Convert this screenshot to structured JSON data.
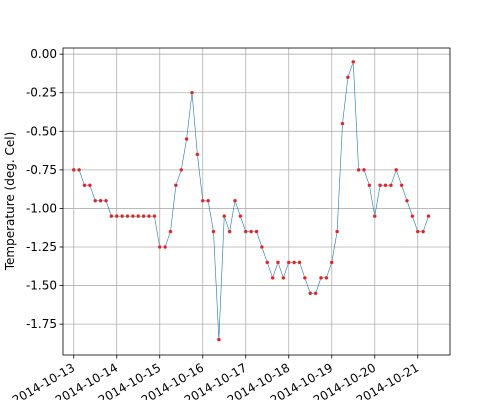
{
  "chart_data": {
    "type": "line",
    "title": "",
    "xlabel": "",
    "ylabel": "Temperature (deg. Cel)",
    "grid": true,
    "line_color": "#1f77b4",
    "marker_color": "#d62728",
    "x_tick_labels": [
      "2014-10-13",
      "2014-10-14",
      "2014-10-15",
      "2014-10-16",
      "2014-10-17",
      "2014-10-18",
      "2014-10-19",
      "2014-10-20",
      "2014-10-21"
    ],
    "y_ticks": [
      "0.00",
      "-0.25",
      "-0.50",
      "-0.75",
      "-1.00",
      "-1.25",
      "-1.50",
      "-1.75"
    ],
    "ylim": [
      -1.95,
      0.04
    ],
    "xlim": [
      "2014-10-12 18:00",
      "2014-10-21 18:00"
    ],
    "x": [
      "2014-10-13 00:00",
      "2014-10-13 03:00",
      "2014-10-13 06:00",
      "2014-10-13 09:00",
      "2014-10-13 12:00",
      "2014-10-13 15:00",
      "2014-10-13 18:00",
      "2014-10-13 21:00",
      "2014-10-14 00:00",
      "2014-10-14 03:00",
      "2014-10-14 06:00",
      "2014-10-14 09:00",
      "2014-10-14 12:00",
      "2014-10-14 15:00",
      "2014-10-14 18:00",
      "2014-10-14 21:00",
      "2014-10-15 00:00",
      "2014-10-15 03:00",
      "2014-10-15 06:00",
      "2014-10-15 09:00",
      "2014-10-15 12:00",
      "2014-10-15 15:00",
      "2014-10-15 18:00",
      "2014-10-15 21:00",
      "2014-10-16 00:00",
      "2014-10-16 03:00",
      "2014-10-16 06:00",
      "2014-10-16 09:00",
      "2014-10-16 12:00",
      "2014-10-16 15:00",
      "2014-10-16 18:00",
      "2014-10-16 21:00",
      "2014-10-17 00:00",
      "2014-10-17 03:00",
      "2014-10-17 06:00",
      "2014-10-17 09:00",
      "2014-10-17 12:00",
      "2014-10-17 15:00",
      "2014-10-17 18:00",
      "2014-10-17 21:00",
      "2014-10-18 00:00",
      "2014-10-18 03:00",
      "2014-10-18 06:00",
      "2014-10-18 09:00",
      "2014-10-18 12:00",
      "2014-10-18 15:00",
      "2014-10-18 18:00",
      "2014-10-18 21:00",
      "2014-10-19 00:00",
      "2014-10-19 03:00",
      "2014-10-19 06:00",
      "2014-10-19 09:00",
      "2014-10-19 12:00",
      "2014-10-19 15:00",
      "2014-10-19 18:00",
      "2014-10-19 21:00",
      "2014-10-20 00:00",
      "2014-10-20 03:00",
      "2014-10-20 06:00",
      "2014-10-20 09:00",
      "2014-10-20 12:00",
      "2014-10-20 15:00",
      "2014-10-20 18:00",
      "2014-10-20 21:00",
      "2014-10-21 00:00",
      "2014-10-21 03:00",
      "2014-10-21 06:00"
    ],
    "values": [
      -0.75,
      -0.75,
      -0.85,
      -0.85,
      -0.95,
      -0.95,
      -0.95,
      -1.05,
      -1.05,
      -1.05,
      -1.05,
      -1.05,
      -1.05,
      -1.05,
      -1.05,
      -1.05,
      -1.25,
      -1.25,
      -1.15,
      -0.85,
      -0.75,
      -0.55,
      -0.25,
      -0.65,
      -0.95,
      -0.95,
      -1.15,
      -1.85,
      -1.05,
      -1.15,
      -0.95,
      -1.05,
      -1.15,
      -1.15,
      -1.15,
      -1.25,
      -1.35,
      -1.45,
      -1.35,
      -1.45,
      -1.35,
      -1.35,
      -1.35,
      -1.45,
      -1.55,
      -1.55,
      -1.45,
      -1.45,
      -1.35,
      -1.15,
      -0.45,
      -0.15,
      -0.05,
      -0.75,
      -0.75,
      -0.85,
      -1.05,
      -0.85,
      -0.85,
      -0.85,
      -0.75,
      -0.85,
      -0.95,
      -1.05,
      -1.15,
      -1.15,
      -1.05
    ]
  }
}
